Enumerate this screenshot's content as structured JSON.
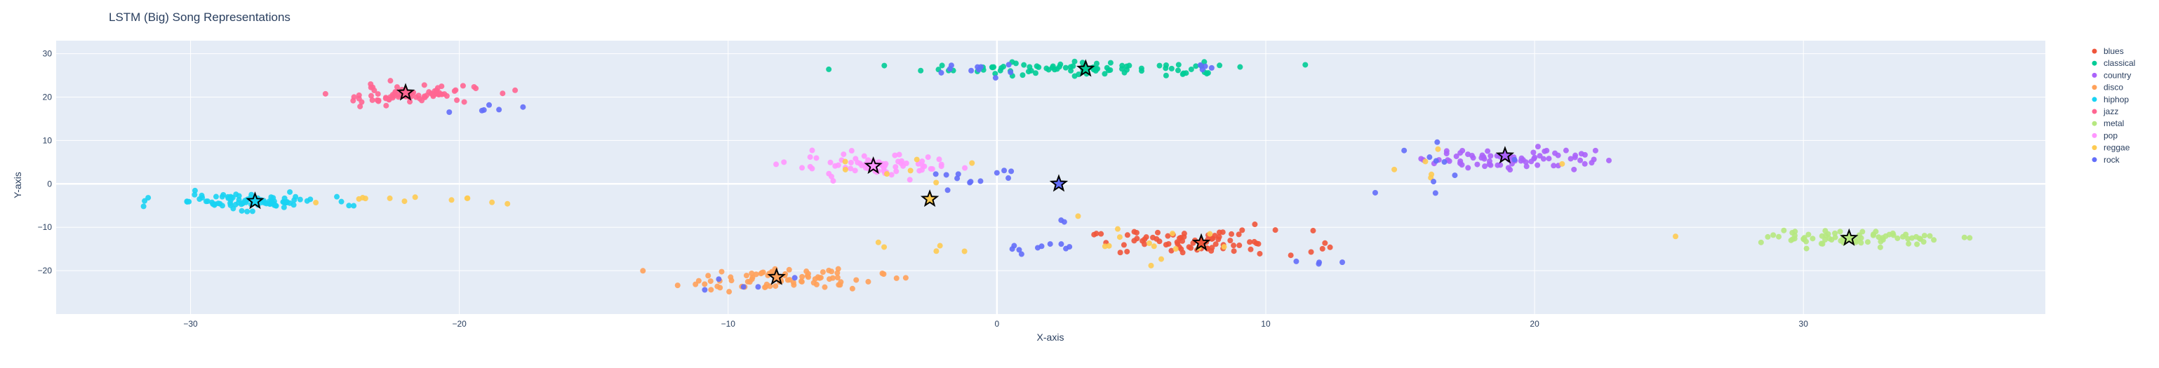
{
  "chart_data": {
    "type": "scatter",
    "title": "LSTM (Big) Song Representations",
    "xlabel": "X-axis",
    "ylabel": "Y-axis",
    "xlim": [
      -35,
      39
    ],
    "ylim": [
      -30,
      33
    ],
    "xticks": [
      -30,
      -20,
      -10,
      0,
      10,
      20,
      30
    ],
    "yticks": [
      -20,
      -10,
      0,
      10,
      20,
      30
    ],
    "grid": true,
    "plot_bgcolor": "#e5ecf6",
    "legend_position": "right",
    "series": [
      {
        "name": "blues",
        "color": "#ef553b",
        "clusters": [
          {
            "cx": 7.5,
            "cy": -13.5,
            "sx": 2.1,
            "sy": 1.4,
            "n": 80
          }
        ],
        "centroid": [
          7.6,
          -13.6
        ]
      },
      {
        "name": "classical",
        "color": "#00cc96",
        "clusters": [
          {
            "cx": 3.5,
            "cy": 26.5,
            "sx": 3.0,
            "sy": 0.8,
            "n": 90
          }
        ],
        "centroid": [
          3.3,
          26.5
        ]
      },
      {
        "name": "country",
        "color": "#ab63fa",
        "clusters": [
          {
            "cx": 19.0,
            "cy": 6.0,
            "sx": 1.6,
            "sy": 1.4,
            "n": 75
          }
        ],
        "centroid": [
          18.9,
          6.5
        ]
      },
      {
        "name": "disco",
        "color": "#ffa15a",
        "clusters": [
          {
            "cx": -8.0,
            "cy": -22.0,
            "sx": 1.9,
            "sy": 1.2,
            "n": 80
          }
        ],
        "centroid": [
          -8.2,
          -21.5
        ]
      },
      {
        "name": "hiphop",
        "color": "#19d3f3",
        "clusters": [
          {
            "cx": -28.0,
            "cy": -4.0,
            "sx": 1.5,
            "sy": 0.9,
            "n": 90
          }
        ],
        "centroid": [
          -27.6,
          -4.0
        ]
      },
      {
        "name": "jazz",
        "color": "#ff6692",
        "clusters": [
          {
            "cx": -22.0,
            "cy": 20.5,
            "sx": 1.4,
            "sy": 1.1,
            "n": 80
          }
        ],
        "centroid": [
          -22.0,
          21.0
        ]
      },
      {
        "name": "metal",
        "color": "#b6e880",
        "clusters": [
          {
            "cx": 32.0,
            "cy": -12.5,
            "sx": 1.6,
            "sy": 0.8,
            "n": 75
          }
        ],
        "centroid": [
          31.7,
          -12.5
        ]
      },
      {
        "name": "pop",
        "color": "#ff97ff",
        "clusters": [
          {
            "cx": -4.5,
            "cy": 4.0,
            "sx": 1.6,
            "sy": 1.3,
            "n": 75
          }
        ],
        "centroid": [
          -4.6,
          4.1
        ]
      },
      {
        "name": "reggae",
        "color": "#fecb52",
        "clusters": [
          {
            "cx": -22.0,
            "cy": -4.0,
            "sx": 1.8,
            "sy": 0.5,
            "n": 12
          },
          {
            "cx": 5.0,
            "cy": -14.0,
            "sx": 2.0,
            "sy": 2.5,
            "n": 14
          },
          {
            "cx": -3.0,
            "cy": -15.0,
            "sx": 1.5,
            "sy": 0.8,
            "n": 5
          },
          {
            "cx": 17.0,
            "cy": 5.0,
            "sx": 2.0,
            "sy": 1.5,
            "n": 6
          },
          {
            "cx": -5.0,
            "cy": 3.0,
            "sx": 2.0,
            "sy": 1.5,
            "n": 8
          },
          {
            "cx": 25.5,
            "cy": -12.0,
            "sx": 0.2,
            "sy": 0.3,
            "n": 1
          }
        ],
        "centroid": [
          -2.5,
          -3.5
        ]
      },
      {
        "name": "rock",
        "color": "#636efa",
        "clusters": [
          {
            "cx": -1.0,
            "cy": 26.5,
            "sx": 0.9,
            "sy": 0.8,
            "n": 10
          },
          {
            "cx": 8.0,
            "cy": 27.0,
            "sx": 0.4,
            "sy": 0.6,
            "n": 4
          },
          {
            "cx": -19.0,
            "cy": 16.5,
            "sx": 1.0,
            "sy": 0.8,
            "n": 6
          },
          {
            "cx": -1.0,
            "cy": 1.5,
            "sx": 0.9,
            "sy": 1.8,
            "n": 12
          },
          {
            "cx": 1.5,
            "cy": -14.5,
            "sx": 1.4,
            "sy": 0.9,
            "n": 10
          },
          {
            "cx": 12.0,
            "cy": -18.0,
            "sx": 0.4,
            "sy": 0.5,
            "n": 4
          },
          {
            "cx": 16.5,
            "cy": 4.0,
            "sx": 1.5,
            "sy": 2.5,
            "n": 10
          },
          {
            "cx": -9.0,
            "cy": -23.0,
            "sx": 1.0,
            "sy": 1.0,
            "n": 5
          },
          {
            "cx": 2.5,
            "cy": -9.0,
            "sx": 0.3,
            "sy": 0.5,
            "n": 2
          }
        ],
        "centroid": [
          2.3,
          0.0
        ]
      }
    ],
    "legend_entries": [
      "blues",
      "classical",
      "country",
      "disco",
      "hiphop",
      "jazz",
      "metal",
      "pop",
      "reggae",
      "rock"
    ]
  }
}
